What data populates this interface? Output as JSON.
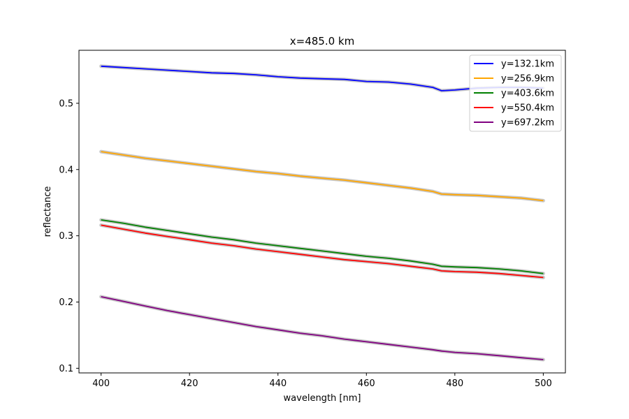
{
  "chart_data": {
    "type": "line",
    "title": "x=485.0 km",
    "xlabel": "wavelength [nm]",
    "ylabel": "reflectance",
    "xlim": [
      395,
      505
    ],
    "ylim": [
      0.093,
      0.58
    ],
    "xticks": [
      400,
      420,
      440,
      460,
      480,
      500
    ],
    "yticks": [
      0.1,
      0.2,
      0.3,
      0.4,
      0.5
    ],
    "grid": false,
    "legend_position": "top-right",
    "x": [
      400,
      405,
      410,
      415,
      420,
      425,
      430,
      435,
      440,
      445,
      450,
      455,
      460,
      465,
      470,
      475,
      477,
      480,
      485,
      490,
      495,
      500
    ],
    "series": [
      {
        "name": "y=132.1km",
        "color": "#0000ff",
        "values": [
          0.556,
          0.554,
          0.552,
          0.55,
          0.548,
          0.546,
          0.545,
          0.543,
          0.54,
          0.538,
          0.537,
          0.536,
          0.533,
          0.532,
          0.529,
          0.524,
          0.519,
          0.52,
          0.523,
          0.524,
          0.524,
          0.523
        ]
      },
      {
        "name": "y=256.9km",
        "color": "#ffa500",
        "values": [
          0.427,
          0.422,
          0.417,
          0.413,
          0.409,
          0.405,
          0.401,
          0.397,
          0.394,
          0.39,
          0.387,
          0.384,
          0.38,
          0.376,
          0.372,
          0.367,
          0.363,
          0.362,
          0.361,
          0.359,
          0.357,
          0.353
        ]
      },
      {
        "name": "y=403.6km",
        "color": "#008000",
        "values": [
          0.324,
          0.319,
          0.313,
          0.308,
          0.303,
          0.298,
          0.294,
          0.289,
          0.285,
          0.281,
          0.277,
          0.273,
          0.269,
          0.266,
          0.262,
          0.257,
          0.254,
          0.253,
          0.252,
          0.25,
          0.247,
          0.243
        ]
      },
      {
        "name": "y=550.4km",
        "color": "#ff0000",
        "values": [
          0.316,
          0.31,
          0.304,
          0.299,
          0.294,
          0.289,
          0.285,
          0.28,
          0.276,
          0.272,
          0.268,
          0.264,
          0.261,
          0.258,
          0.254,
          0.25,
          0.247,
          0.246,
          0.245,
          0.243,
          0.24,
          0.237
        ]
      },
      {
        "name": "y=697.2km",
        "color": "#800080",
        "values": [
          0.208,
          0.201,
          0.194,
          0.187,
          0.181,
          0.175,
          0.169,
          0.163,
          0.158,
          0.153,
          0.149,
          0.144,
          0.14,
          0.136,
          0.132,
          0.128,
          0.126,
          0.124,
          0.122,
          0.119,
          0.116,
          0.113
        ]
      }
    ]
  }
}
